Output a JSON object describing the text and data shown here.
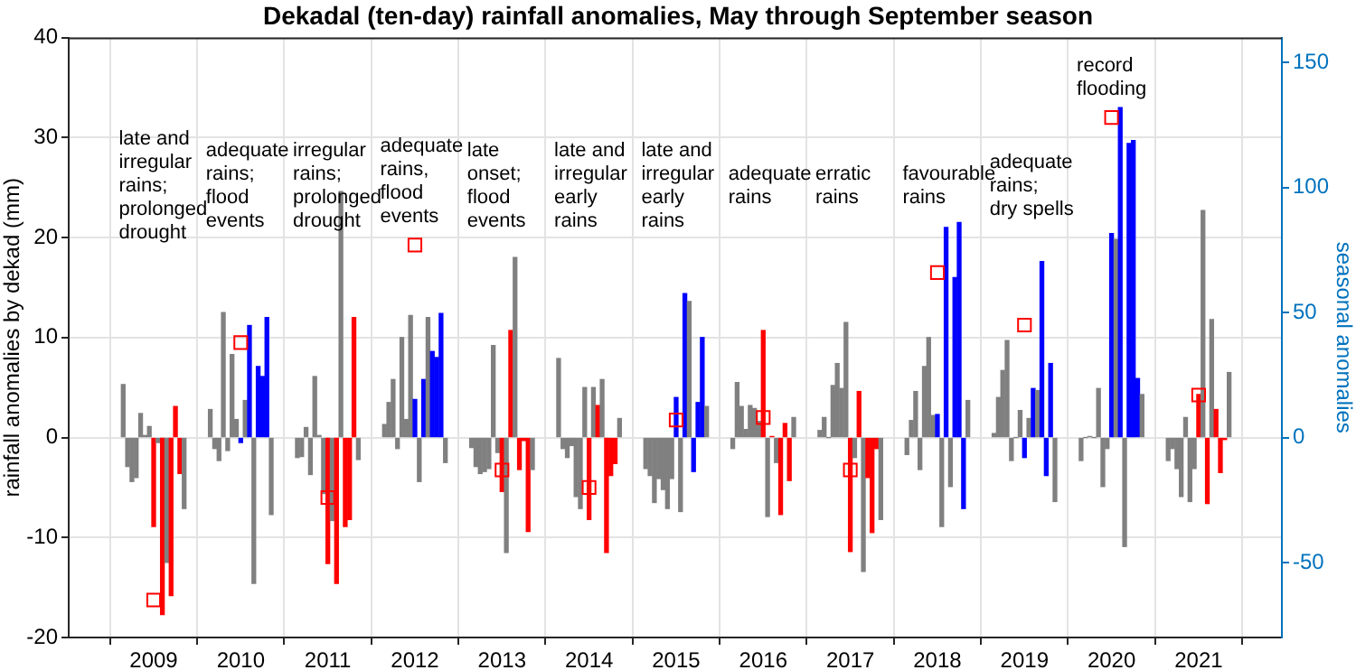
{
  "chart_data": {
    "type": "bar",
    "title": "Dekadal (ten-day) rainfall anomalies, May through September season",
    "ylabel": "rainfall anomalies by dekad (mm)",
    "y2label": "seasonal anomalies",
    "xlim": [
      2008.56,
      2021.42
    ],
    "xticks": [
      2009,
      2010,
      2011,
      2012,
      2013,
      2014,
      2015,
      2016,
      2017,
      2018,
      2019,
      2020,
      2021
    ],
    "ylim": [
      -20,
      40
    ],
    "yticks": [
      -20,
      -10,
      0,
      10,
      20,
      30,
      40
    ],
    "y2lim": [
      -80,
      160
    ],
    "y2ticks": [
      -50,
      0,
      50,
      100,
      150
    ],
    "grid": true,
    "marker": "square",
    "series": [
      {
        "x": [
          2008.65,
          2008.7,
          2008.75,
          2008.8,
          2008.85,
          2008.9,
          2008.95,
          2009,
          2009.05,
          2009.1,
          2009.15,
          2009.2,
          2009.25,
          2009.3,
          2009.35,
          2009.65,
          2009.7,
          2009.75,
          2009.8,
          2009.85,
          2009.9,
          2009.95,
          2010,
          2010.05,
          2010.1,
          2010.15,
          2010.2,
          2010.25,
          2010.3,
          2010.35,
          2010.65,
          2010.7,
          2010.75,
          2010.8,
          2010.85,
          2010.9,
          2010.95,
          2011,
          2011.05,
          2011.1,
          2011.15,
          2011.2,
          2011.25,
          2011.3,
          2011.35,
          2011.65,
          2011.7,
          2011.75,
          2011.8,
          2011.85,
          2011.9,
          2011.95,
          2012,
          2012.05,
          2012.1,
          2012.15,
          2012.2,
          2012.25,
          2012.3,
          2012.35,
          2012.65,
          2012.7,
          2012.75,
          2012.8,
          2012.85,
          2012.9,
          2012.95,
          2013,
          2013.05,
          2013.1,
          2013.15,
          2013.2,
          2013.25,
          2013.3,
          2013.35,
          2013.65,
          2013.7,
          2013.75,
          2013.8,
          2013.85,
          2013.9,
          2013.95,
          2014,
          2014.05,
          2014.1,
          2014.15,
          2014.2,
          2014.25,
          2014.3,
          2014.35,
          2014.65,
          2014.7,
          2014.75,
          2014.8,
          2014.85,
          2014.9,
          2014.95,
          2015,
          2015.05,
          2015.1,
          2015.15,
          2015.2,
          2015.25,
          2015.3,
          2015.35,
          2015.65,
          2015.7,
          2015.75,
          2015.8,
          2015.85,
          2015.9,
          2015.95,
          2016,
          2016.05,
          2016.1,
          2016.15,
          2016.2,
          2016.25,
          2016.3,
          2016.35,
          2016.65,
          2016.7,
          2016.75,
          2016.8,
          2016.85,
          2016.9,
          2016.95,
          2017,
          2017.05,
          2017.1,
          2017.15,
          2017.2,
          2017.25,
          2017.3,
          2017.35,
          2017.65,
          2017.7,
          2017.75,
          2017.8,
          2017.85,
          2017.9,
          2017.95,
          2018,
          2018.05,
          2018.1,
          2018.15,
          2018.2,
          2018.25,
          2018.3,
          2018.35,
          2018.65,
          2018.7,
          2018.75,
          2018.8,
          2018.85,
          2018.9,
          2018.95,
          2019,
          2019.05,
          2019.1,
          2019.15,
          2019.2,
          2019.25,
          2019.3,
          2019.35,
          2019.65,
          2019.7,
          2019.75,
          2019.8,
          2019.85,
          2019.9,
          2019.95,
          2020,
          2020.05,
          2020.1,
          2020.15,
          2020.2,
          2020.25,
          2020.3,
          2020.35,
          2020.65,
          2020.7,
          2020.75,
          2020.8,
          2020.85,
          2020.9,
          2020.95,
          2021,
          2021.05,
          2021.1,
          2021.15,
          2021.2,
          2021.25,
          2021.3,
          2021.35
        ],
        "values": [
          5.3,
          -2.9,
          -4.4,
          -4,
          2.4,
          0.2,
          1.1,
          -8.9,
          -0.5,
          -17.7,
          -12.5,
          -15.8,
          3.1,
          -3.6,
          -7.1,
          2.8,
          -1.1,
          -2.3,
          12.5,
          -1.3,
          8.3,
          1.8,
          -0.5,
          3.7,
          11.2,
          -14.6,
          7.1,
          6.1,
          12,
          -7.7,
          -2,
          -1.9,
          1,
          -3.7,
          6.1,
          0.2,
          -5.6,
          -12.6,
          -8.3,
          -14.6,
          24.6,
          -8.9,
          -8.2,
          12,
          -2.2,
          1.3,
          3.5,
          5.8,
          -1.1,
          10,
          1.8,
          12.2,
          3.8,
          -4.4,
          5.8,
          12,
          8.6,
          8,
          12.4,
          -2.5,
          -1,
          -2.9,
          -3.6,
          -3.4,
          -3.1,
          9.2,
          -1.5,
          -5.4,
          -11.5,
          10.7,
          18,
          -3.2,
          -0.3,
          -9.4,
          -3.2,
          7.9,
          -1.1,
          -2,
          -0.8,
          -5.9,
          -7.1,
          5,
          -8.2,
          5,
          3.2,
          5.8,
          -11.5,
          -3.8,
          -2.6,
          1.9,
          -3.1,
          -3.8,
          -6.5,
          -4.1,
          -5.2,
          -7.1,
          -4.1,
          4,
          -7.4,
          14.4,
          13.6,
          -3.4,
          3.5,
          10,
          3.1,
          -1.1,
          5.5,
          3.1,
          0.8,
          3.2,
          2.9,
          1.6,
          10.7,
          -7.9,
          0.1,
          -2.5,
          -7.7,
          1.4,
          -4.3,
          2,
          0.7,
          2,
          0,
          5.2,
          7.4,
          4.9,
          11.5,
          -11.4,
          -2,
          4.6,
          -13.4,
          -4,
          -9.5,
          -1.1,
          -8.2,
          -1.7,
          1.7,
          4.6,
          -3.2,
          7.1,
          10,
          2.2,
          2.3,
          -8.9,
          21,
          -4.9,
          16,
          21.5,
          -7.1,
          3.7,
          0.4,
          4,
          6.7,
          9.7,
          -2.3,
          0,
          2.7,
          -2,
          1.9,
          4.9,
          4.7,
          17.6,
          -3.8,
          7.4,
          -6.4,
          -2.3,
          0,
          0.1,
          0,
          4.9,
          -4.9,
          -1.1,
          20.4,
          19.8,
          33,
          -10.9,
          29.4,
          29.7,
          5.9,
          4.3,
          -2.3,
          -1.1,
          -3.1,
          -5.9,
          2,
          -6.4,
          -3.1,
          4.3,
          22.7,
          -6.6,
          11.8,
          2.8,
          -3.5,
          -0.2,
          6.5
        ],
        "colors": [
          "#808080",
          "#808080",
          "#808080",
          "#808080",
          "#808080",
          "#808080",
          "#808080",
          "#ff0000",
          "#808080",
          "#ff0000",
          "#808080",
          "#ff0000",
          "#ff0000",
          "#ff0000",
          "#808080",
          "#808080",
          "#808080",
          "#808080",
          "#808080",
          "#808080",
          "#808080",
          "#808080",
          "#0000ff",
          "#808080",
          "#0000ff",
          "#808080",
          "#0000ff",
          "#0000ff",
          "#0000ff",
          "#808080",
          "#808080",
          "#808080",
          "#808080",
          "#808080",
          "#808080",
          "#808080",
          "#808080",
          "#ff0000",
          "#808080",
          "#ff0000",
          "#808080",
          "#ff0000",
          "#ff0000",
          "#ff0000",
          "#808080",
          "#808080",
          "#808080",
          "#808080",
          "#808080",
          "#808080",
          "#808080",
          "#808080",
          "#0000ff",
          "#808080",
          "#0000ff",
          "#808080",
          "#0000ff",
          "#0000ff",
          "#0000ff",
          "#808080",
          "#808080",
          "#808080",
          "#808080",
          "#808080",
          "#808080",
          "#808080",
          "#808080",
          "#ff0000",
          "#808080",
          "#ff0000",
          "#808080",
          "#ff0000",
          "#ff0000",
          "#ff0000",
          "#808080",
          "#808080",
          "#808080",
          "#808080",
          "#808080",
          "#808080",
          "#808080",
          "#808080",
          "#ff0000",
          "#808080",
          "#ff0000",
          "#808080",
          "#ff0000",
          "#ff0000",
          "#ff0000",
          "#808080",
          "#808080",
          "#808080",
          "#808080",
          "#808080",
          "#808080",
          "#808080",
          "#808080",
          "#0000ff",
          "#808080",
          "#0000ff",
          "#808080",
          "#0000ff",
          "#0000ff",
          "#0000ff",
          "#808080",
          "#808080",
          "#808080",
          "#808080",
          "#808080",
          "#808080",
          "#808080",
          "#808080",
          "#ff0000",
          "#808080",
          "#ff0000",
          "#808080",
          "#ff0000",
          "#ff0000",
          "#ff0000",
          "#808080",
          "#808080",
          "#808080",
          "#808080",
          "#808080",
          "#808080",
          "#808080",
          "#808080",
          "#ff0000",
          "#808080",
          "#ff0000",
          "#808080",
          "#ff0000",
          "#ff0000",
          "#ff0000",
          "#808080",
          "#808080",
          "#808080",
          "#808080",
          "#808080",
          "#808080",
          "#808080",
          "#808080",
          "#0000ff",
          "#808080",
          "#0000ff",
          "#808080",
          "#0000ff",
          "#0000ff",
          "#0000ff",
          "#808080",
          "#808080",
          "#808080",
          "#808080",
          "#808080",
          "#808080",
          "#808080",
          "#808080",
          "#0000ff",
          "#808080",
          "#0000ff",
          "#808080",
          "#0000ff",
          "#0000ff",
          "#0000ff",
          "#808080",
          "#808080",
          "#808080",
          "#808080",
          "#808080",
          "#808080",
          "#808080",
          "#808080",
          "#0000ff",
          "#808080",
          "#0000ff",
          "#808080",
          "#0000ff",
          "#0000ff",
          "#0000ff",
          "#808080",
          "#808080",
          "#808080",
          "#808080",
          "#808080",
          "#808080",
          "#808080",
          "#808080",
          "#ff0000",
          "#808080",
          "#ff0000",
          "#808080",
          "#ff0000",
          "#ff0000",
          "#ff0000",
          "#808080"
        ]
      },
      {
        "type": "scatter",
        "axis": "y2",
        "color": "#ff0000",
        "x": [
          2009,
          2010,
          2011,
          2012,
          2013,
          2014,
          2015,
          2016,
          2017,
          2018,
          2019,
          2020,
          2021
        ],
        "values": [
          -65,
          38,
          -24,
          77,
          -13,
          -20,
          7,
          8,
          -13,
          66,
          45,
          128,
          17
        ]
      }
    ],
    "annotations": [
      "late and\nirregular\nrains;\nprolonged\ndrought",
      "adequate\nrains;\nflood\nevents",
      "irregular\nrains;\nprolonged\ndrought",
      "adequate\nrains,\nflood\nevents",
      "late\nonset;\nflood\nevents",
      "late and\nirregular\nearly\nrains",
      "late and\nirregular\nearly\nrains",
      "adequate\nrains",
      "erratic\nrains",
      "favourable\nrains",
      "adequate\nrains;\ndry spells",
      "record\nflooding"
    ]
  }
}
